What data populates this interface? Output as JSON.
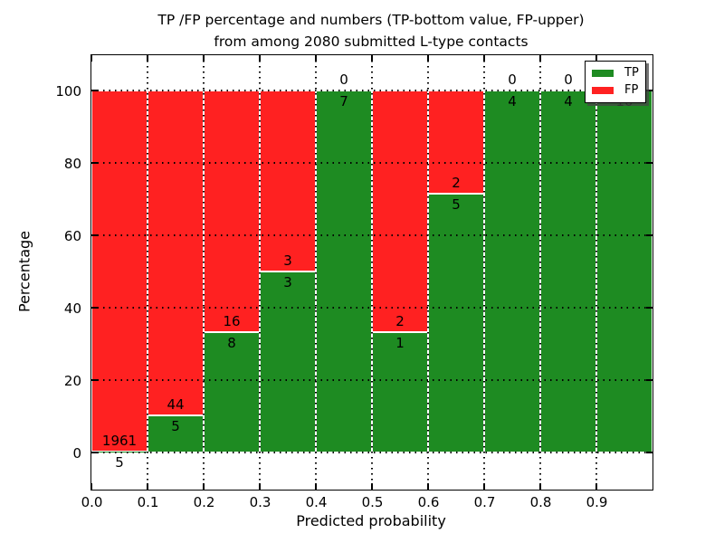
{
  "chart_data": {
    "type": "bar",
    "stacked": true,
    "orientation": "vertical",
    "title": "TP /FP percentage and numbers (TP-bottom value, FP-upper)",
    "subtitle": "from among 2080 submitted L-type contacts",
    "xlabel": "Predicted probability",
    "ylabel": "Percentage",
    "x_ticks": [
      "0.0",
      "0.1",
      "0.2",
      "0.3",
      "0.4",
      "0.5",
      "0.6",
      "0.7",
      "0.8",
      "0.9"
    ],
    "y_ticks": [
      0,
      20,
      40,
      60,
      80,
      100
    ],
    "xlim": [
      0.0,
      1.0
    ],
    "ylim": [
      -10,
      110
    ],
    "grid": true,
    "grid_style": "dotted",
    "legend_position": "upper right",
    "categories": [
      "0.0-0.1",
      "0.1-0.2",
      "0.2-0.3",
      "0.3-0.4",
      "0.4-0.5",
      "0.5-0.6",
      "0.6-0.7",
      "0.7-0.8",
      "0.8-0.9",
      "0.9-1.0"
    ],
    "series": [
      {
        "name": "TP",
        "color": "#1e8b22",
        "values": [
          5,
          5,
          8,
          3,
          7,
          1,
          5,
          4,
          4,
          10
        ]
      },
      {
        "name": "FP",
        "color": "#ff2121",
        "values": [
          1961,
          44,
          16,
          3,
          0,
          2,
          2,
          0,
          0,
          0
        ]
      }
    ],
    "tp_percentages": [
      0.25,
      10.2,
      33.33,
      50.0,
      100.0,
      33.33,
      71.43,
      100.0,
      100.0,
      100.0
    ],
    "colors": {
      "background": "#ffffff",
      "axis": "#000000",
      "bar_edge": "#ffffff",
      "text": "#000000"
    }
  }
}
